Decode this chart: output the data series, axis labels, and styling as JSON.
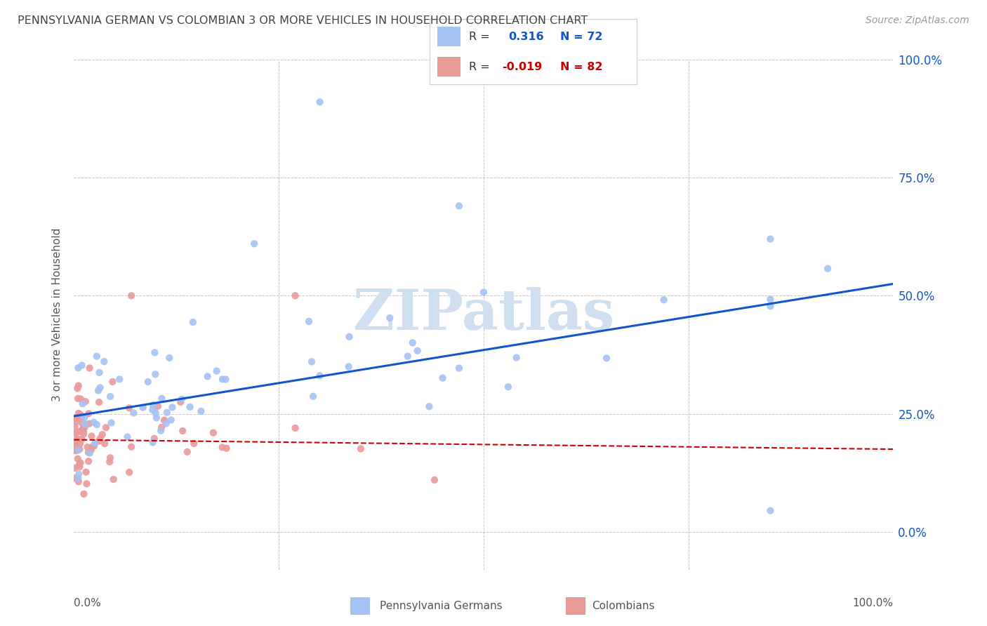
{
  "title": "PENNSYLVANIA GERMAN VS COLOMBIAN 3 OR MORE VEHICLES IN HOUSEHOLD CORRELATION CHART",
  "source": "Source: ZipAtlas.com",
  "ylabel": "3 or more Vehicles in Household",
  "legend1_r": "0.316",
  "legend1_n": "72",
  "legend2_r": "-0.019",
  "legend2_n": "82",
  "blue_color": "#a4c2f4",
  "pink_color": "#ea9999",
  "blue_line_color": "#1155cc",
  "pink_line_color": "#cc0000",
  "watermark_color": "#d0dff0",
  "bg_color": "#ffffff",
  "grid_color": "#b0b0b0",
  "title_color": "#434343",
  "right_tick_color": "#1155cc",
  "source_color": "#999999",
  "blue_line_y_start": 0.245,
  "blue_line_y_end": 0.525,
  "pink_line_y_start": 0.195,
  "pink_line_y_end": 0.175,
  "xlim": [
    0,
    1.0
  ],
  "ylim": [
    -0.08,
    1.0
  ],
  "yticks": [
    0.0,
    0.25,
    0.5,
    0.75,
    1.0
  ],
  "ytick_right_labels": [
    "0.0%",
    "25.0%",
    "50.0%",
    "75.0%",
    "100.0%"
  ],
  "xtick_labels_show": [
    "0.0%",
    "100.0%"
  ],
  "legend_box_color": "#f3f3f3",
  "legend_border_color": "#cccccc"
}
